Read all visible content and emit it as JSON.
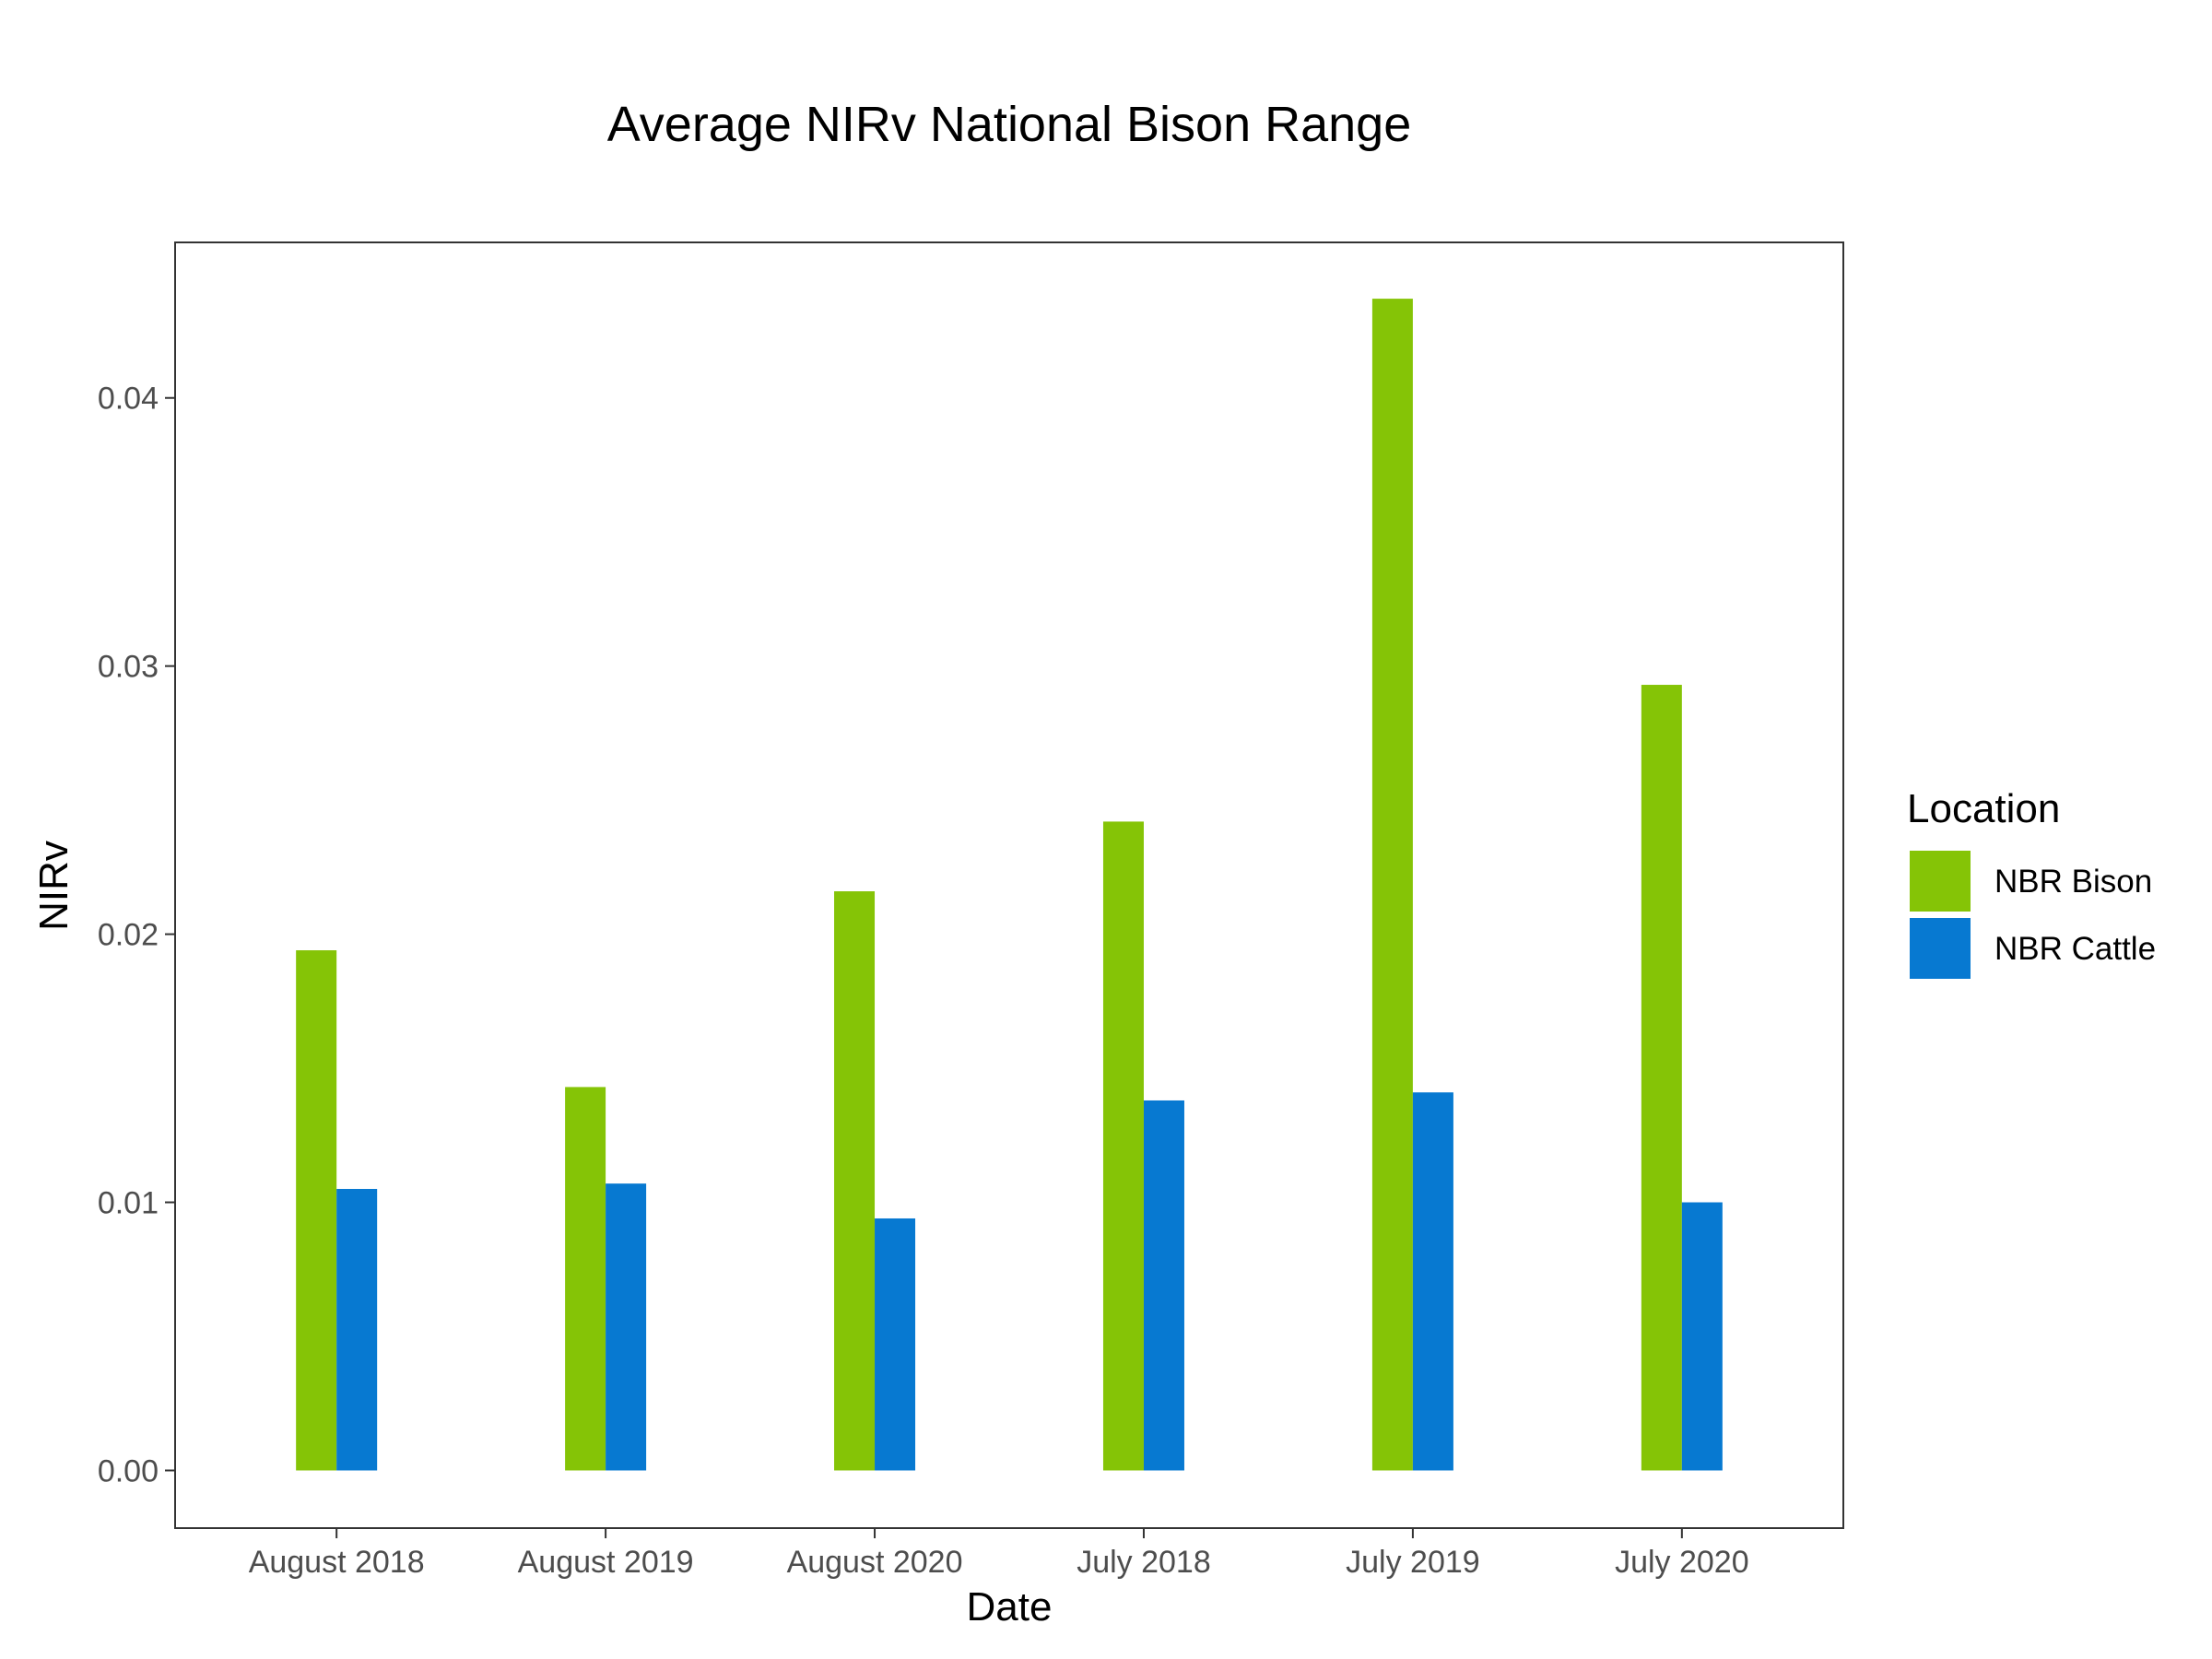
{
  "chart_data": {
    "type": "bar",
    "title": "Average NIRv National Bison Range",
    "xlabel": "Date",
    "ylabel": "NIRv",
    "categories": [
      "August 2018",
      "August 2019",
      "August 2020",
      "July 2018",
      "July 2019",
      "July 2020"
    ],
    "series": [
      {
        "name": "NBR Bison",
        "color": "#85c406",
        "values": [
          0.0194,
          0.0143,
          0.0216,
          0.0242,
          0.0437,
          0.0293
        ]
      },
      {
        "name": "NBR Cattle",
        "color": "#0779d1",
        "values": [
          0.0105,
          0.0107,
          0.0094,
          0.0138,
          0.0141,
          0.01
        ]
      }
    ],
    "ylim": [
      -0.00215,
      0.0458
    ],
    "yticks": [
      0.0,
      0.01,
      0.02,
      0.03,
      0.04
    ],
    "ytick_labels": [
      "0.00",
      "0.01",
      "0.02",
      "0.03",
      "0.04"
    ],
    "grid": false,
    "legend": {
      "title": "Location",
      "position": "right"
    }
  }
}
